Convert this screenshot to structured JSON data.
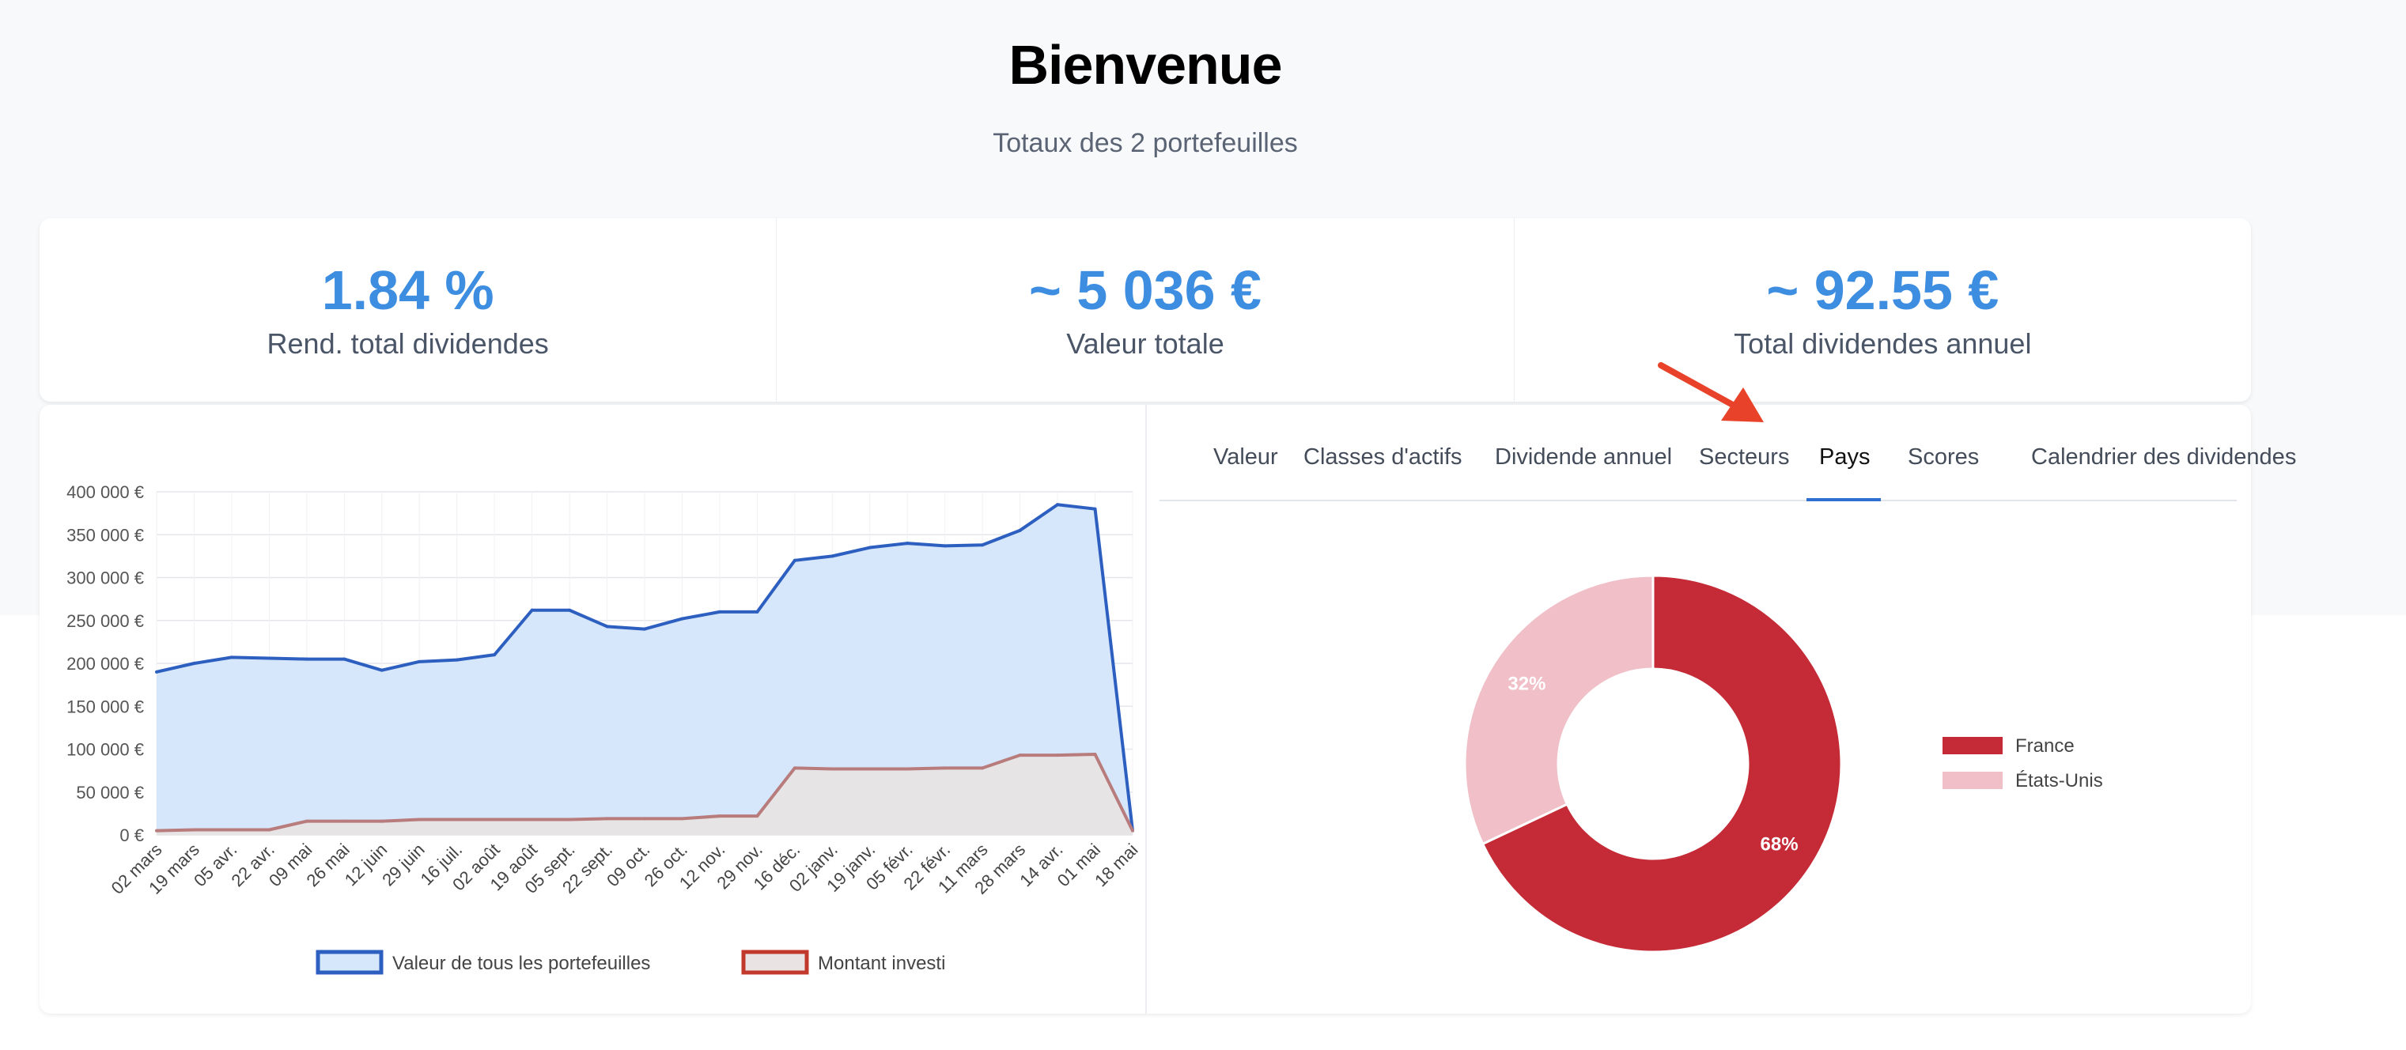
{
  "header": {
    "title": "Bienvenue",
    "subtitle": "Totaux des 2 portefeuilles"
  },
  "stats": [
    {
      "value": "1.84 %",
      "label": "Rend. total dividendes"
    },
    {
      "value": "~ 5 036 €",
      "label": "Valeur totale"
    },
    {
      "value": "~ 92.55 €",
      "label": "Total dividendes annuel"
    }
  ],
  "tabs": [
    {
      "label": "Valeur",
      "active": false
    },
    {
      "label": "Classes d'actifs",
      "active": false
    },
    {
      "label": "Dividende annuel",
      "active": false
    },
    {
      "label": "Secteurs",
      "active": false
    },
    {
      "label": "Pays",
      "active": true
    },
    {
      "label": "Scores",
      "active": false
    },
    {
      "label": "Calendrier des dividendes",
      "active": false
    }
  ],
  "colors": {
    "accent": "#3d8de0",
    "tab_active": "#2f6fd0",
    "annotation_arrow": "#e8432a"
  },
  "chart_data": [
    {
      "type": "area",
      "x": [
        "02 mars",
        "19 mars",
        "05 avr.",
        "22 avr.",
        "09 mai",
        "26 mai",
        "12 juin",
        "29 juin",
        "16 juil.",
        "02 août",
        "19 août",
        "05 sept.",
        "22 sept.",
        "09 oct.",
        "26 oct.",
        "12 nov.",
        "29 nov.",
        "16 déc.",
        "02 janv.",
        "19 janv.",
        "05 févr.",
        "22 févr.",
        "11 mars",
        "28 mars",
        "14 avr.",
        "01 mai",
        "18 mai"
      ],
      "series": [
        {
          "name": "Valeur de tous les portefeuilles",
          "color": "#2c5fbf",
          "fill": "#d6e6fb",
          "values": [
            190000,
            200000,
            207000,
            206000,
            205000,
            205000,
            192000,
            202000,
            204000,
            210000,
            262000,
            262000,
            243000,
            240000,
            252000,
            260000,
            260000,
            320000,
            325000,
            335000,
            340000,
            337000,
            338000,
            355000,
            385000,
            380000,
            5000
          ]
        },
        {
          "name": "Montant investi",
          "color": "#c0392b",
          "fill": "#e9e3e3",
          "values": [
            5000,
            6000,
            6000,
            6000,
            16000,
            16000,
            16000,
            18000,
            18000,
            18000,
            18000,
            18000,
            19000,
            19000,
            19000,
            22000,
            22000,
            78000,
            77000,
            77000,
            77000,
            78000,
            78000,
            93000,
            93000,
            94000,
            5000
          ]
        }
      ],
      "y_ticks": [
        "0 €",
        "50 000 €",
        "100 000 €",
        "150 000 €",
        "200 000 €",
        "250 000 €",
        "300 000 €",
        "350 000 €",
        "400 000 €"
      ],
      "ylim": [
        0,
        400000
      ],
      "grid": true,
      "legend": "bottom"
    },
    {
      "type": "pie",
      "categories": [
        "France",
        "États-Unis"
      ],
      "values": [
        68,
        32
      ],
      "labels": [
        "68%",
        "32%"
      ],
      "colors": [
        "#c42b37",
        "#f1bfc7"
      ],
      "legend": "right"
    }
  ]
}
